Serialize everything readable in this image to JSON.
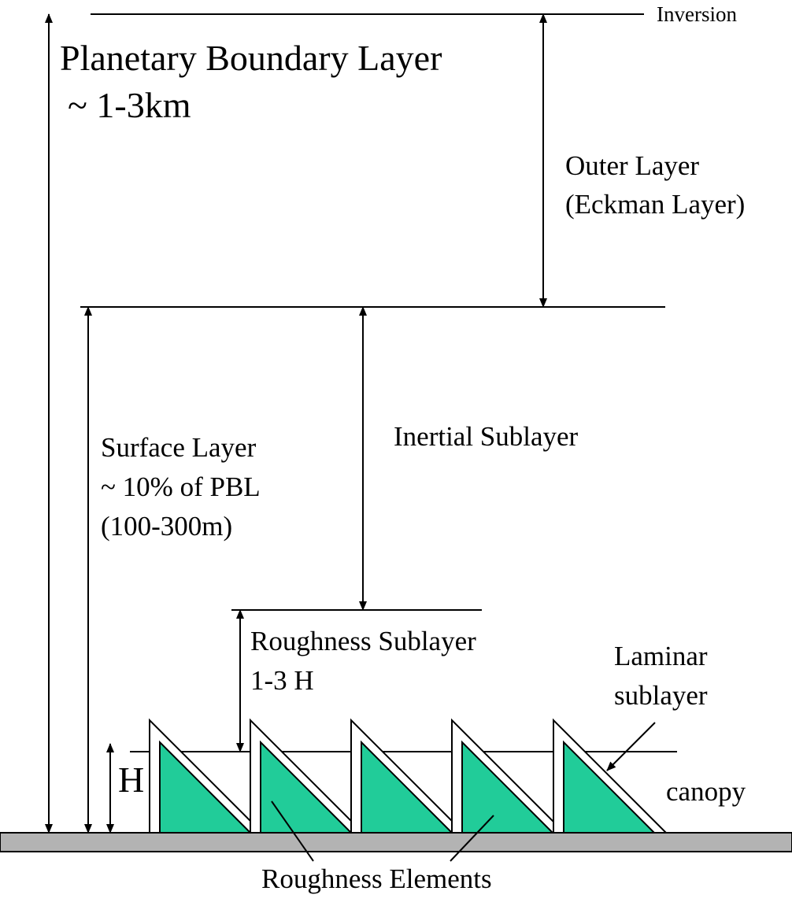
{
  "labels": {
    "inversion": "Inversion",
    "pbl_title": "Planetary Boundary Layer",
    "pbl_height": "~ 1-3km",
    "outer_layer_1": "Outer Layer",
    "outer_layer_2": "(Eckman Layer)",
    "inertial_sublayer": "Inertial Sublayer",
    "surface_layer_1": "Surface Layer",
    "surface_layer_2": "~ 10% of PBL",
    "surface_layer_3": "(100-300m)",
    "roughness_sublayer_1": "Roughness Sublayer",
    "roughness_sublayer_2": "1-3 H",
    "laminar_1": "Laminar",
    "laminar_2": "sublayer",
    "canopy": "canopy",
    "h": "H",
    "roughness_elements": "Roughness Elements"
  },
  "colors": {
    "roughness_element": "#21cc99",
    "ground": "#b3b3b3"
  }
}
